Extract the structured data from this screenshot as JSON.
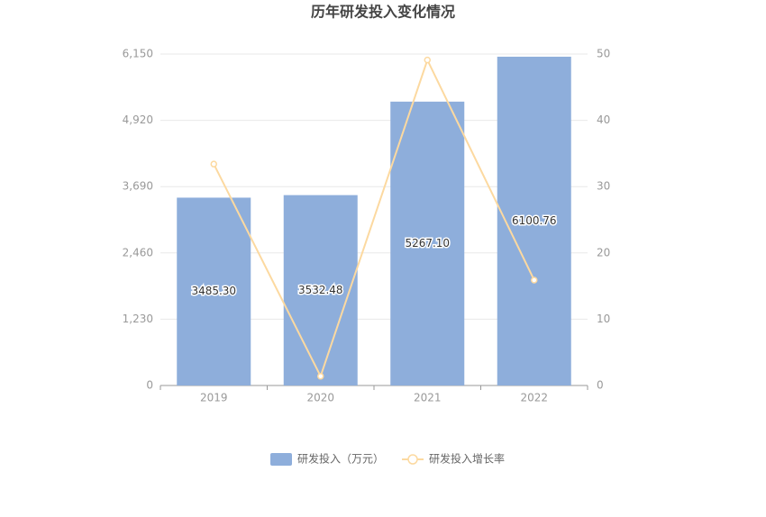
{
  "chart_data": {
    "type": "bar",
    "title": "历年研发投入变化情况",
    "categories": [
      "2019",
      "2020",
      "2021",
      "2022"
    ],
    "series": [
      {
        "name": "研发投入（万元）",
        "type": "bar",
        "color": "#8eaedb",
        "values": [
          3485.3,
          3532.48,
          5267.1,
          6100.76
        ],
        "value_labels": [
          "3485.30",
          "3532.48",
          "5267.10",
          "6100.76"
        ]
      },
      {
        "name": "研发投入增长率",
        "type": "line",
        "axis": "y2",
        "color": "#fcd9a0",
        "values": [
          33.4,
          1.4,
          49.1,
          15.9
        ]
      }
    ],
    "ylim": [
      0,
      6150
    ],
    "yticks": [
      0,
      {
        "value": 1230,
        "label": "1,230"
      },
      {
        "value": 2460,
        "label": "2,460"
      },
      {
        "value": 3690,
        "label": "3,690"
      },
      {
        "value": 4920,
        "label": "4,920"
      },
      {
        "value": 6150,
        "label": "6,150"
      }
    ],
    "y2lim": [
      0,
      50
    ],
    "y2ticks": [
      0,
      10,
      20,
      30,
      40,
      50
    ],
    "grid": true
  }
}
